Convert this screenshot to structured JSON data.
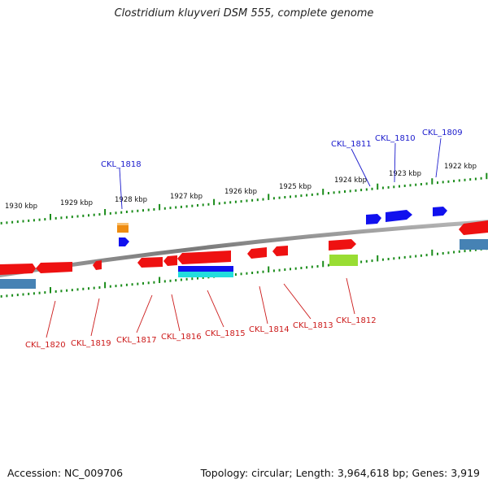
{
  "header": {
    "title": "Clostridium kluyveri DSM 555, complete genome"
  },
  "footer": {
    "accession": "Accession: NC_009706",
    "summary": "Topology: circular; Length: 3,964,618 bp; Genes: 3,919"
  },
  "colors": {
    "backbone": "#808080",
    "tick_green": "#1a8c1a",
    "gene_red": "#ee1111",
    "gene_blue": "#1111ee",
    "gene_orange": "#ee8c11",
    "gene_steelblue": "#4682b4",
    "gene_lime": "#99dd33",
    "gene_cyan": "#22dddd",
    "label_top": "#1a1acc",
    "label_bottom": "#cc1a1a"
  },
  "ruler": {
    "labels": [
      "1930 kbp",
      "1929 kbp",
      "1928 kbp",
      "1927 kbp",
      "1926 kbp",
      "1925 kbp",
      "1924 kbp",
      "1923 kbp",
      "1922 kbp"
    ]
  },
  "genes_top": [
    {
      "label": "CKL_1818"
    },
    {
      "label": "CKL_1811"
    },
    {
      "label": "CKL_1810"
    },
    {
      "label": "CKL_1809"
    }
  ],
  "genes_bottom": [
    {
      "label": "CKL_1820"
    },
    {
      "label": "CKL_1819"
    },
    {
      "label": "CKL_1817"
    },
    {
      "label": "CKL_1816"
    },
    {
      "label": "CKL_1815"
    },
    {
      "label": "CKL_1814"
    },
    {
      "label": "CKL_1813"
    },
    {
      "label": "CKL_1812"
    }
  ]
}
